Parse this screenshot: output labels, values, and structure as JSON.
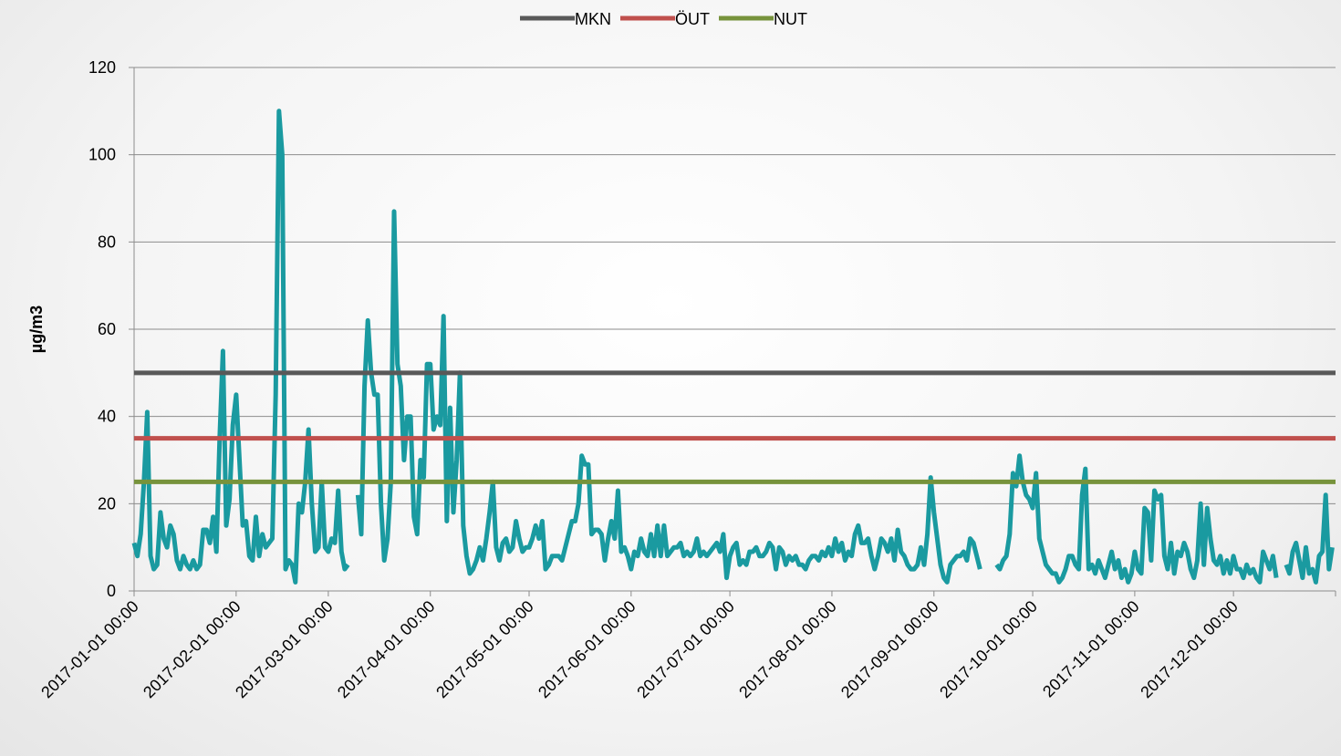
{
  "chart_data": {
    "type": "line",
    "y_label": "µg/m3",
    "ylim": [
      0,
      120
    ],
    "yticks": [
      0,
      20,
      40,
      60,
      80,
      100,
      120
    ],
    "grid": true,
    "legend": "top",
    "reference_lines": [
      {
        "name": "MKN",
        "color": "#595959",
        "value": 50
      },
      {
        "name": "ÖUT",
        "color": "#c0504d",
        "value": 35
      },
      {
        "name": "NUT",
        "color": "#77933c",
        "value": 25
      }
    ],
    "categories": [
      "2017-01-01 00:00",
      null,
      null,
      null,
      null,
      null,
      null,
      null,
      null,
      null,
      null,
      null,
      null,
      null,
      null,
      null,
      null,
      null,
      null,
      null,
      null,
      null,
      null,
      null,
      null,
      null,
      null,
      null,
      null,
      null,
      null,
      "2017-02-01 00:00",
      null,
      null,
      null,
      null,
      null,
      null,
      null,
      null,
      null,
      null,
      null,
      null,
      null,
      null,
      null,
      null,
      null,
      null,
      null,
      null,
      null,
      null,
      null,
      null,
      null,
      null,
      null,
      "2017-03-01 00:00",
      null,
      null,
      null,
      null,
      null,
      null,
      null,
      null,
      null,
      null,
      null,
      null,
      null,
      null,
      null,
      null,
      null,
      null,
      null,
      null,
      null,
      null,
      null,
      null,
      null,
      null,
      null,
      null,
      null,
      null,
      "2017-04-01 00:00",
      null,
      null,
      null,
      null,
      null,
      null,
      null,
      null,
      null,
      null,
      null,
      null,
      null,
      null,
      null,
      null,
      null,
      null,
      null,
      null,
      null,
      null,
      null,
      null,
      null,
      null,
      null,
      null,
      null,
      "2017-05-01 00:00",
      null,
      null,
      null,
      null,
      null,
      null,
      null,
      null,
      null,
      null,
      null,
      null,
      null,
      null,
      null,
      null,
      null,
      null,
      null,
      null,
      null,
      null,
      null,
      null,
      null,
      null,
      null,
      null,
      null,
      null,
      "2017-06-01 00:00",
      null,
      null,
      null,
      null,
      null,
      null,
      null,
      null,
      null,
      null,
      null,
      null,
      null,
      null,
      null,
      null,
      null,
      null,
      null,
      null,
      null,
      null,
      null,
      null,
      null,
      null,
      null,
      null,
      null,
      "2017-07-01 00:00",
      null,
      null,
      null,
      null,
      null,
      null,
      null,
      null,
      null,
      null,
      null,
      null,
      null,
      null,
      null,
      null,
      null,
      null,
      null,
      null,
      null,
      null,
      null,
      null,
      null,
      null,
      null,
      null,
      null,
      null,
      "2017-08-01 00:00",
      null,
      null,
      null,
      null,
      null,
      null,
      null,
      null,
      null,
      null,
      null,
      null,
      null,
      null,
      null,
      null,
      null,
      null,
      null,
      null,
      null,
      null,
      null,
      null,
      null,
      null,
      null,
      null,
      null,
      null,
      "2017-09-01 00:00",
      null,
      null,
      null,
      null,
      null,
      null,
      null,
      null,
      null,
      null,
      null,
      null,
      null,
      null,
      null,
      null,
      null,
      null,
      null,
      null,
      null,
      null,
      null,
      null,
      null,
      null,
      null,
      null,
      null,
      "2017-10-01 00:00",
      null,
      null,
      null,
      null,
      null,
      null,
      null,
      null,
      null,
      null,
      null,
      null,
      null,
      null,
      null,
      null,
      null,
      null,
      null,
      null,
      null,
      null,
      null,
      null,
      null,
      null,
      null,
      null,
      null,
      null,
      "2017-11-01 00:00",
      null,
      null,
      null,
      null,
      null,
      null,
      null,
      null,
      null,
      null,
      null,
      null,
      null,
      null,
      null,
      null,
      null,
      null,
      null,
      null,
      null,
      null,
      null,
      null,
      null,
      null,
      null,
      null,
      null,
      "2017-12-01 00:00",
      null,
      null,
      null,
      null,
      null,
      null,
      null,
      null,
      null,
      null,
      null,
      null,
      null,
      null,
      null,
      null,
      null,
      null,
      null,
      null,
      null,
      null,
      null,
      null,
      null,
      null,
      null,
      null,
      null,
      null
    ],
    "series": [
      {
        "color": "#1a9aa0",
        "values": [
          11,
          8,
          13,
          25,
          41,
          8,
          5,
          6,
          18,
          12,
          10,
          15,
          13,
          7,
          5,
          8,
          6,
          5,
          7,
          5,
          6,
          14,
          14,
          11,
          17,
          9,
          35,
          55,
          15,
          21,
          38,
          45,
          30,
          15,
          16,
          8,
          7,
          17,
          8,
          13,
          10,
          11,
          12,
          45,
          110,
          100,
          5,
          7,
          6,
          2,
          20,
          18,
          25,
          37,
          20,
          9,
          10,
          25,
          10,
          9,
          12,
          11,
          23,
          9,
          5,
          6,
          null,
          null,
          22,
          13,
          47,
          62,
          50,
          45,
          45,
          20,
          7,
          12,
          25,
          87,
          52,
          47,
          30,
          40,
          40,
          17,
          13,
          30,
          26,
          52,
          52,
          37,
          40,
          38,
          63,
          16,
          42,
          18,
          30,
          50,
          15,
          8,
          4,
          5,
          7,
          10,
          7,
          12,
          18,
          25,
          10,
          7,
          11,
          12,
          9,
          10,
          16,
          12,
          9,
          10,
          10,
          12,
          15,
          12,
          16,
          5,
          6,
          8,
          8,
          8,
          7,
          10,
          13,
          16,
          16,
          20,
          31,
          29,
          29,
          13,
          14,
          14,
          13,
          7,
          12,
          16,
          12,
          23,
          9,
          10,
          8,
          5,
          9,
          8,
          12,
          9,
          8,
          13,
          8,
          15,
          8,
          15,
          8,
          9,
          10,
          10,
          11,
          8,
          9,
          8,
          9,
          12,
          8,
          9,
          8,
          9,
          10,
          11,
          9,
          13,
          3,
          8,
          10,
          11,
          6,
          7,
          6,
          9,
          9,
          10,
          8,
          8,
          9,
          11,
          10,
          5,
          10,
          9,
          6,
          8,
          7,
          8,
          6,
          6,
          5,
          7,
          8,
          8,
          7,
          9,
          8,
          10,
          8,
          12,
          9,
          11,
          7,
          9,
          8,
          13,
          15,
          11,
          11,
          12,
          8,
          5,
          8,
          12,
          11,
          9,
          12,
          7,
          14,
          9,
          8,
          6,
          5,
          5,
          6,
          10,
          6,
          13,
          26,
          18,
          12,
          6,
          3,
          2,
          6,
          7,
          8,
          8,
          9,
          7,
          12,
          11,
          8,
          5,
          null,
          null,
          null,
          null,
          6,
          5,
          7,
          8,
          13,
          27,
          24,
          31,
          25,
          22,
          21,
          19,
          27,
          12,
          9,
          6,
          5,
          4,
          4,
          2,
          3,
          5,
          8,
          8,
          6,
          5,
          22,
          28,
          5,
          6,
          4,
          7,
          5,
          3,
          6,
          9,
          5,
          7,
          3,
          5,
          2,
          4,
          9,
          5,
          4,
          19,
          18,
          7,
          23,
          21,
          22,
          8,
          5,
          11,
          4,
          9,
          8,
          11,
          9,
          5,
          3,
          7,
          20,
          6,
          19,
          12,
          7,
          6,
          8,
          4,
          7,
          4,
          8,
          5,
          5,
          3,
          6,
          4,
          5,
          3,
          2,
          9,
          7,
          5,
          8,
          3,
          null,
          null,
          6,
          4,
          9,
          11,
          7,
          3,
          10,
          4,
          5,
          2,
          8,
          9,
          22,
          5,
          10
        ]
      }
    ]
  }
}
